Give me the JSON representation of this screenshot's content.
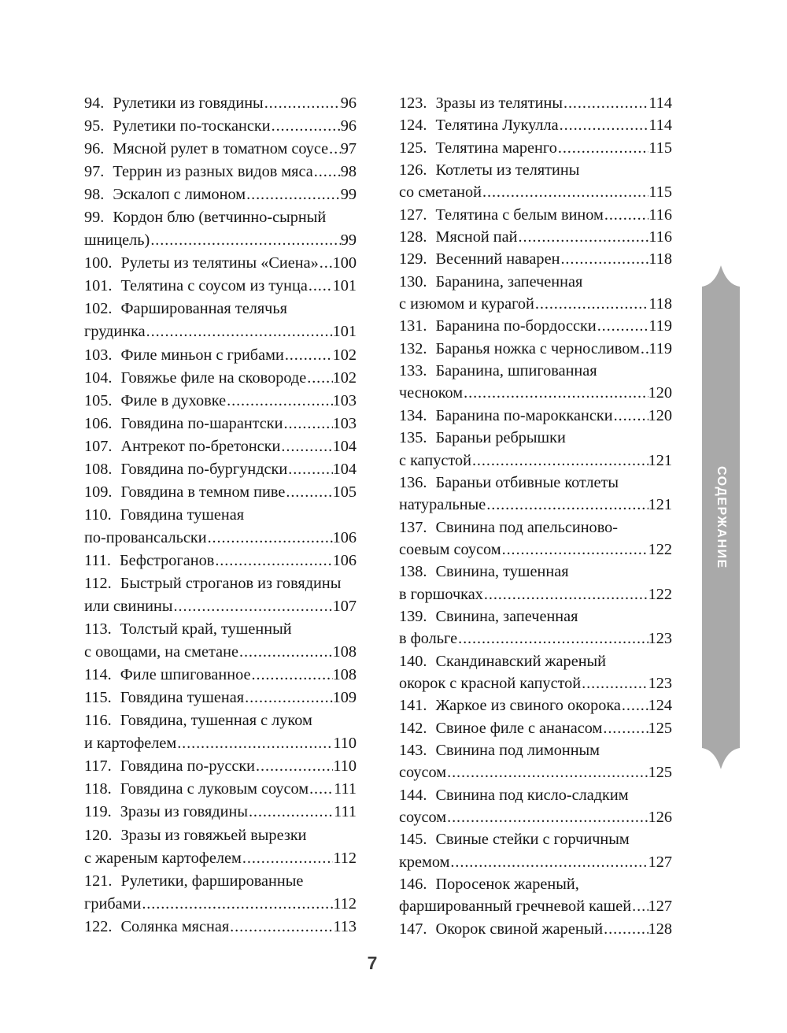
{
  "page": {
    "folio": "7"
  },
  "ribbon": {
    "label": "СОДЕРЖАНИЕ"
  },
  "colors": {
    "text": "#161616",
    "ribbon_fill": "#a9a9a9",
    "ribbon_text": "#ffffff",
    "folio": "#3d3d3d"
  },
  "toc": {
    "left_column": [
      {
        "num": "94.",
        "lines": [
          "Рулетики из говядины"
        ],
        "page": "96"
      },
      {
        "num": "95.",
        "lines": [
          "Рулетики по-тоскански"
        ],
        "page": "96"
      },
      {
        "num": "96.",
        "lines": [
          "Мясной рулет в томатном соусе"
        ],
        "page": "97"
      },
      {
        "num": "97.",
        "lines": [
          "Террин из разных видов мяса"
        ],
        "page": "98"
      },
      {
        "num": "98.",
        "lines": [
          "Эскалоп с лимоном"
        ],
        "page": "99"
      },
      {
        "num": "99.",
        "lines": [
          "Кордон блю (ветчинно-сырный",
          "шницель)"
        ],
        "page": "99"
      },
      {
        "num": "100.",
        "lines": [
          "Рулеты из телятины «Сиена»"
        ],
        "page": "100"
      },
      {
        "num": "101.",
        "lines": [
          "Телятина с соусом из тунца"
        ],
        "page": "101"
      },
      {
        "num": "102.",
        "lines": [
          "Фаршированная телячья",
          "грудинка"
        ],
        "page": "101"
      },
      {
        "num": "103.",
        "lines": [
          "Филе миньон с грибами"
        ],
        "page": "102"
      },
      {
        "num": "104.",
        "lines": [
          "Говяжье филе на сковороде"
        ],
        "page": "102"
      },
      {
        "num": "105.",
        "lines": [
          "Филе в духовке"
        ],
        "page": "103"
      },
      {
        "num": "106.",
        "lines": [
          "Говядина по-шарантски"
        ],
        "page": "103"
      },
      {
        "num": "107.",
        "lines": [
          "Антрекот по-бретонски"
        ],
        "page": "104"
      },
      {
        "num": "108.",
        "lines": [
          "Говядина по-бургундски"
        ],
        "page": "104"
      },
      {
        "num": "109.",
        "lines": [
          "Говядина в темном пиве"
        ],
        "page": "105"
      },
      {
        "num": "110.",
        "lines": [
          "Говядина тушеная",
          "по-провансальски"
        ],
        "page": "106"
      },
      {
        "num": "111.",
        "lines": [
          "Бефстроганов"
        ],
        "page": "106"
      },
      {
        "num": "112.",
        "lines": [
          "Быстрый строганов из говядины",
          "или свинины"
        ],
        "page": "107"
      },
      {
        "num": "113.",
        "lines": [
          "Толстый край, тушенный",
          "с овощами, на сметане"
        ],
        "page": "108"
      },
      {
        "num": "114.",
        "lines": [
          "Филе шпигованное"
        ],
        "page": "108"
      },
      {
        "num": "115.",
        "lines": [
          "Говядина тушеная"
        ],
        "page": "109"
      },
      {
        "num": "116.",
        "lines": [
          "Говядина, тушенная с луком",
          "и картофелем"
        ],
        "page": "110"
      },
      {
        "num": "117.",
        "lines": [
          "Говядина по-русски"
        ],
        "page": "110"
      },
      {
        "num": "118.",
        "lines": [
          "Говядина с луковым соусом"
        ],
        "page": "111"
      },
      {
        "num": "119.",
        "lines": [
          "Зразы из говядины"
        ],
        "page": "111"
      },
      {
        "num": "120.",
        "lines": [
          "Зразы из говяжьей вырезки",
          "с жареным картофелем"
        ],
        "page": "112"
      },
      {
        "num": "121.",
        "lines": [
          "Рулетики, фаршированные",
          "грибами"
        ],
        "page": "112"
      },
      {
        "num": "122.",
        "lines": [
          "Солянка мясная"
        ],
        "page": "113"
      }
    ],
    "right_column": [
      {
        "num": "123.",
        "lines": [
          "Зразы из телятины"
        ],
        "page": "114"
      },
      {
        "num": "124.",
        "lines": [
          "Телятина Лукулла"
        ],
        "page": "114"
      },
      {
        "num": "125.",
        "lines": [
          "Телятина маренго"
        ],
        "page": "115"
      },
      {
        "num": "126.",
        "lines": [
          "Котлеты из телятины",
          "со сметаной"
        ],
        "page": "115"
      },
      {
        "num": "127.",
        "lines": [
          "Телятина с белым вином"
        ],
        "page": "116"
      },
      {
        "num": "128.",
        "lines": [
          "Мясной пай"
        ],
        "page": "116"
      },
      {
        "num": "129.",
        "lines": [
          "Весенний наварен"
        ],
        "page": "118"
      },
      {
        "num": "130.",
        "lines": [
          "Баранина, запеченная",
          "с изюмом и курагой"
        ],
        "page": "118"
      },
      {
        "num": "131.",
        "lines": [
          "Баранина по-бордосски"
        ],
        "page": "119"
      },
      {
        "num": "132.",
        "lines": [
          "Баранья ножка с черносливом"
        ],
        "page": "119"
      },
      {
        "num": "133.",
        "lines": [
          "Баранина, шпигованная",
          "чесноком"
        ],
        "page": "120"
      },
      {
        "num": "134.",
        "lines": [
          "Баранина по-мароккански"
        ],
        "page": "120"
      },
      {
        "num": "135.",
        "lines": [
          "Бараньи ребрышки",
          "с капустой"
        ],
        "page": "121"
      },
      {
        "num": "136.",
        "lines": [
          "Бараньи отбивные котлеты",
          "натуральные"
        ],
        "page": "121"
      },
      {
        "num": "137.",
        "lines": [
          "Свинина под апельсиново-",
          "соевым соусом"
        ],
        "page": "122"
      },
      {
        "num": "138.",
        "lines": [
          "Свинина, тушенная",
          "в горшочках"
        ],
        "page": "122"
      },
      {
        "num": "139.",
        "lines": [
          "Свинина, запеченная",
          "в фольге"
        ],
        "page": "123"
      },
      {
        "num": "140.",
        "lines": [
          "Скандинавский жареный",
          "окорок с красной капустой"
        ],
        "page": "123"
      },
      {
        "num": "141.",
        "lines": [
          "Жаркое из свиного окорока"
        ],
        "page": "124"
      },
      {
        "num": "142.",
        "lines": [
          "Свиное филе с ананасом"
        ],
        "page": "125"
      },
      {
        "num": "143.",
        "lines": [
          "Свинина под лимонным",
          "соусом"
        ],
        "page": "125"
      },
      {
        "num": "144.",
        "lines": [
          "Свинина под кисло-сладким",
          "соусом"
        ],
        "page": "126"
      },
      {
        "num": "145.",
        "lines": [
          "Свиные стейки с горчичным",
          "кремом"
        ],
        "page": "127"
      },
      {
        "num": "146.",
        "lines": [
          "Поросенок жареный,",
          "фаршированный гречневой кашей"
        ],
        "page": "127"
      },
      {
        "num": "147.",
        "lines": [
          "Окорок свиной жареный"
        ],
        "page": "128"
      }
    ]
  }
}
